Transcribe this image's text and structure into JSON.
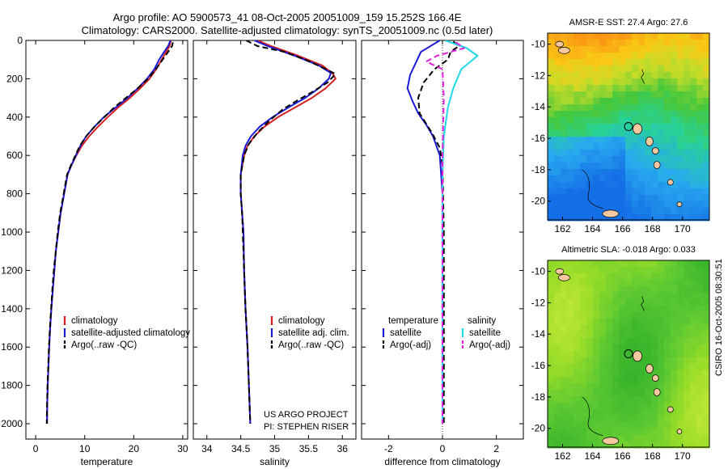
{
  "title": {
    "line1": "Argo profile: AO 5900573_41 08-Oct-2005 20051009_159 15.252S 166.4E",
    "line2": "Climatology: CARS2000. Satellite-adjusted climatology: synTS_20051009.nc (0.5d later)"
  },
  "side_label": "CSIRO 16-Oct-2005 08:30:51",
  "project": {
    "line1": "US ARGO PROJECT",
    "line2": "PI: STEPHEN RISER"
  },
  "colors": {
    "climatology": "#d42020",
    "satellite": "#1a1ad8",
    "argo": "#000000",
    "sal_satellite": "#20d8e8",
    "sal_argo": "#e020e0"
  },
  "chart_data": [
    {
      "type": "line",
      "name": "temperature-profile",
      "xlabel": "temperature",
      "ylabel": "",
      "xlim": [
        -2,
        31
      ],
      "ylim": [
        2080,
        0
      ],
      "xticks": [
        0,
        10,
        20,
        30
      ],
      "yticks": [
        0,
        200,
        400,
        600,
        800,
        1000,
        1200,
        1400,
        1600,
        1800,
        2000
      ],
      "legend": [
        "climatology",
        "satellite-adjusted climatology",
        "Argo(..raw -QC)"
      ],
      "series": [
        {
          "name": "climatology",
          "style": "solid",
          "color": "#d42020",
          "points": [
            [
              27.6,
              0
            ],
            [
              27.3,
              30
            ],
            [
              26.6,
              60
            ],
            [
              25.7,
              100
            ],
            [
              24.6,
              150
            ],
            [
              23.2,
              200
            ],
            [
              21.3,
              250
            ],
            [
              19.2,
              300
            ],
            [
              16.8,
              350
            ],
            [
              14.7,
              400
            ],
            [
              12.7,
              450
            ],
            [
              10.9,
              500
            ],
            [
              9.4,
              550
            ],
            [
              8.3,
              600
            ],
            [
              7.3,
              650
            ],
            [
              6.5,
              700
            ],
            [
              5.8,
              800
            ],
            [
              5.1,
              900
            ],
            [
              4.6,
              1000
            ],
            [
              4.1,
              1100
            ],
            [
              3.8,
              1200
            ],
            [
              3.5,
              1300
            ],
            [
              3.2,
              1400
            ],
            [
              2.95,
              1500
            ],
            [
              2.75,
              1600
            ],
            [
              2.6,
              1700
            ],
            [
              2.45,
              1800
            ],
            [
              2.35,
              1900
            ],
            [
              2.3,
              2000
            ]
          ]
        },
        {
          "name": "satellite-adjusted climatology",
          "style": "solid",
          "color": "#1a1ad8",
          "points": [
            [
              27.5,
              0
            ],
            [
              27.0,
              30
            ],
            [
              26.2,
              60
            ],
            [
              25.2,
              100
            ],
            [
              24.2,
              150
            ],
            [
              22.7,
              200
            ],
            [
              20.8,
              250
            ],
            [
              18.7,
              300
            ],
            [
              16.3,
              350
            ],
            [
              13.9,
              400
            ],
            [
              12.0,
              450
            ],
            [
              10.3,
              500
            ],
            [
              9.1,
              550
            ],
            [
              8.2,
              600
            ],
            [
              7.3,
              650
            ],
            [
              6.5,
              700
            ],
            [
              5.8,
              800
            ],
            [
              5.1,
              900
            ],
            [
              4.6,
              1000
            ],
            [
              4.1,
              1100
            ],
            [
              3.8,
              1200
            ],
            [
              3.5,
              1300
            ],
            [
              3.2,
              1400
            ],
            [
              2.95,
              1500
            ],
            [
              2.75,
              1600
            ],
            [
              2.6,
              1700
            ],
            [
              2.45,
              1800
            ],
            [
              2.35,
              1900
            ],
            [
              2.3,
              2000
            ]
          ]
        },
        {
          "name": "Argo(..raw -QC)",
          "style": "dashed",
          "color": "#000000",
          "points": [
            [
              28.0,
              10
            ],
            [
              27.8,
              30
            ],
            [
              27.0,
              60
            ],
            [
              25.9,
              100
            ],
            [
              24.5,
              150
            ],
            [
              22.9,
              200
            ],
            [
              20.8,
              250
            ],
            [
              18.4,
              300
            ],
            [
              16.0,
              350
            ],
            [
              14.0,
              400
            ],
            [
              12.0,
              450
            ],
            [
              10.3,
              500
            ],
            [
              9.0,
              550
            ],
            [
              8.1,
              600
            ],
            [
              7.2,
              650
            ],
            [
              6.4,
              700
            ],
            [
              5.7,
              800
            ],
            [
              5.0,
              900
            ],
            [
              4.5,
              1000
            ],
            [
              4.1,
              1100
            ],
            [
              3.7,
              1200
            ],
            [
              3.4,
              1300
            ],
            [
              3.15,
              1400
            ],
            [
              2.9,
              1500
            ],
            [
              2.7,
              1600
            ],
            [
              2.55,
              1700
            ],
            [
              2.4,
              1800
            ],
            [
              2.3,
              1900
            ],
            [
              2.25,
              2000
            ]
          ]
        }
      ]
    },
    {
      "type": "line",
      "name": "salinity-profile",
      "xlabel": "salinity",
      "ylabel": "",
      "xlim": [
        33.8,
        36.2
      ],
      "ylim": [
        2080,
        0
      ],
      "xticks": [
        34,
        34.5,
        35,
        35.5,
        36
      ],
      "yticks": [],
      "legend": [
        "climatology",
        "satellite adj. clim.",
        "Argo(..raw -QC)"
      ],
      "series": [
        {
          "name": "climatology",
          "style": "solid",
          "color": "#d42020",
          "points": [
            [
              34.75,
              0
            ],
            [
              34.95,
              30
            ],
            [
              35.35,
              80
            ],
            [
              35.7,
              130
            ],
            [
              35.85,
              170
            ],
            [
              35.9,
              200
            ],
            [
              35.75,
              250
            ],
            [
              35.55,
              300
            ],
            [
              35.3,
              350
            ],
            [
              35.05,
              400
            ],
            [
              34.85,
              450
            ],
            [
              34.7,
              500
            ],
            [
              34.6,
              550
            ],
            [
              34.55,
              600
            ],
            [
              34.5,
              700
            ],
            [
              34.5,
              800
            ],
            [
              34.52,
              900
            ],
            [
              34.54,
              1000
            ],
            [
              34.55,
              1200
            ],
            [
              34.57,
              1400
            ],
            [
              34.6,
              1600
            ],
            [
              34.62,
              1800
            ],
            [
              34.64,
              2000
            ]
          ]
        },
        {
          "name": "satellite adj. clim.",
          "style": "solid",
          "color": "#1a1ad8",
          "points": [
            [
              34.7,
              0
            ],
            [
              34.9,
              30
            ],
            [
              35.3,
              80
            ],
            [
              35.65,
              130
            ],
            [
              35.83,
              170
            ],
            [
              35.8,
              200
            ],
            [
              35.65,
              250
            ],
            [
              35.45,
              300
            ],
            [
              35.2,
              350
            ],
            [
              34.97,
              400
            ],
            [
              34.78,
              450
            ],
            [
              34.65,
              500
            ],
            [
              34.57,
              550
            ],
            [
              34.53,
              600
            ],
            [
              34.5,
              700
            ],
            [
              34.5,
              800
            ],
            [
              34.52,
              900
            ],
            [
              34.54,
              1000
            ],
            [
              34.55,
              1200
            ],
            [
              34.57,
              1400
            ],
            [
              34.6,
              1600
            ],
            [
              34.62,
              1800
            ],
            [
              34.64,
              2000
            ]
          ]
        },
        {
          "name": "Argo(..raw -QC)",
          "style": "dashed",
          "color": "#000000",
          "points": [
            [
              34.58,
              0
            ],
            [
              34.75,
              30
            ],
            [
              35.15,
              60
            ],
            [
              35.45,
              100
            ],
            [
              35.7,
              140
            ],
            [
              35.9,
              175
            ],
            [
              35.78,
              220
            ],
            [
              35.55,
              270
            ],
            [
              35.35,
              310
            ],
            [
              35.12,
              360
            ],
            [
              34.92,
              420
            ],
            [
              34.75,
              480
            ],
            [
              34.62,
              540
            ],
            [
              34.55,
              600
            ],
            [
              34.5,
              700
            ],
            [
              34.5,
              800
            ],
            [
              34.52,
              900
            ],
            [
              34.53,
              1000
            ],
            [
              34.55,
              1200
            ],
            [
              34.57,
              1400
            ],
            [
              34.6,
              1600
            ],
            [
              34.62,
              1800
            ],
            [
              34.64,
              2000
            ]
          ]
        }
      ]
    },
    {
      "type": "line",
      "name": "difference-from-climatology",
      "xlabel": "difference from climatology",
      "ylabel": "",
      "xlim": [
        -3,
        3
      ],
      "ylim": [
        2080,
        0
      ],
      "xticks": [
        -2,
        0,
        2
      ],
      "yticks": [],
      "legend": [
        "temperature",
        "satellite",
        "Argo(-adj)",
        "salinity",
        "satellite",
        "Argo(-adj)"
      ],
      "series": [
        {
          "name": "temperature satellite",
          "style": "solid",
          "color": "#1a1ad8",
          "points": [
            [
              -0.1,
              0
            ],
            [
              -0.8,
              60
            ],
            [
              -1.0,
              120
            ],
            [
              -1.2,
              180
            ],
            [
              -1.3,
              250
            ],
            [
              -1.1,
              320
            ],
            [
              -0.9,
              380
            ],
            [
              -0.6,
              440
            ],
            [
              -0.35,
              500
            ],
            [
              -0.1,
              600
            ],
            [
              0,
              800
            ],
            [
              0,
              1200
            ],
            [
              0,
              2000
            ]
          ]
        },
        {
          "name": "temperature Argo(-adj)",
          "style": "dashed",
          "color": "#000000",
          "points": [
            [
              0.4,
              5
            ],
            [
              0.6,
              30
            ],
            [
              0.3,
              60
            ],
            [
              0.2,
              100
            ],
            [
              -0.3,
              150
            ],
            [
              -0.7,
              220
            ],
            [
              -0.9,
              300
            ],
            [
              -0.85,
              380
            ],
            [
              -0.4,
              480
            ],
            [
              -0.1,
              560
            ],
            [
              0,
              650
            ],
            [
              0.05,
              1000
            ],
            [
              0.05,
              1500
            ],
            [
              0.05,
              2000
            ]
          ]
        },
        {
          "name": "salinity satellite",
          "style": "solid",
          "color": "#20d8e8",
          "points": [
            [
              0.1,
              0
            ],
            [
              0.9,
              40
            ],
            [
              1.3,
              80
            ],
            [
              0.7,
              150
            ],
            [
              0.4,
              250
            ],
            [
              0.2,
              350
            ],
            [
              0.05,
              500
            ],
            [
              0,
              700
            ],
            [
              0,
              1000
            ],
            [
              0,
              1500
            ],
            [
              0,
              2000
            ]
          ]
        },
        {
          "name": "salinity Argo(-adj)",
          "style": "dashed",
          "color": "#e020e0",
          "points": [
            [
              0.5,
              10
            ],
            [
              0.8,
              40
            ],
            [
              -0.2,
              80
            ],
            [
              -0.6,
              110
            ],
            [
              0.0,
              150
            ],
            [
              0.05,
              300
            ],
            [
              0.0,
              600
            ],
            [
              0,
              1000
            ],
            [
              0,
              1500
            ],
            [
              0,
              2000
            ]
          ]
        }
      ]
    }
  ],
  "maps": [
    {
      "name": "amsr-sst-map",
      "title": "AMSR-E SST: 27.4 Argo: 27.6",
      "xticks": [
        "162",
        "164",
        "166",
        "168",
        "170"
      ],
      "yticks": [
        "-10",
        "-12",
        "-14",
        "-16",
        "-18",
        "-20"
      ]
    },
    {
      "name": "altimetric-sla-map",
      "title": "Altimetric SLA: -0.018 Argo: 0.033",
      "xticks": [
        "162",
        "164",
        "166",
        "168",
        "170"
      ],
      "yticks": [
        "-10",
        "-12",
        "-14",
        "-16",
        "-18",
        "-20"
      ]
    }
  ]
}
